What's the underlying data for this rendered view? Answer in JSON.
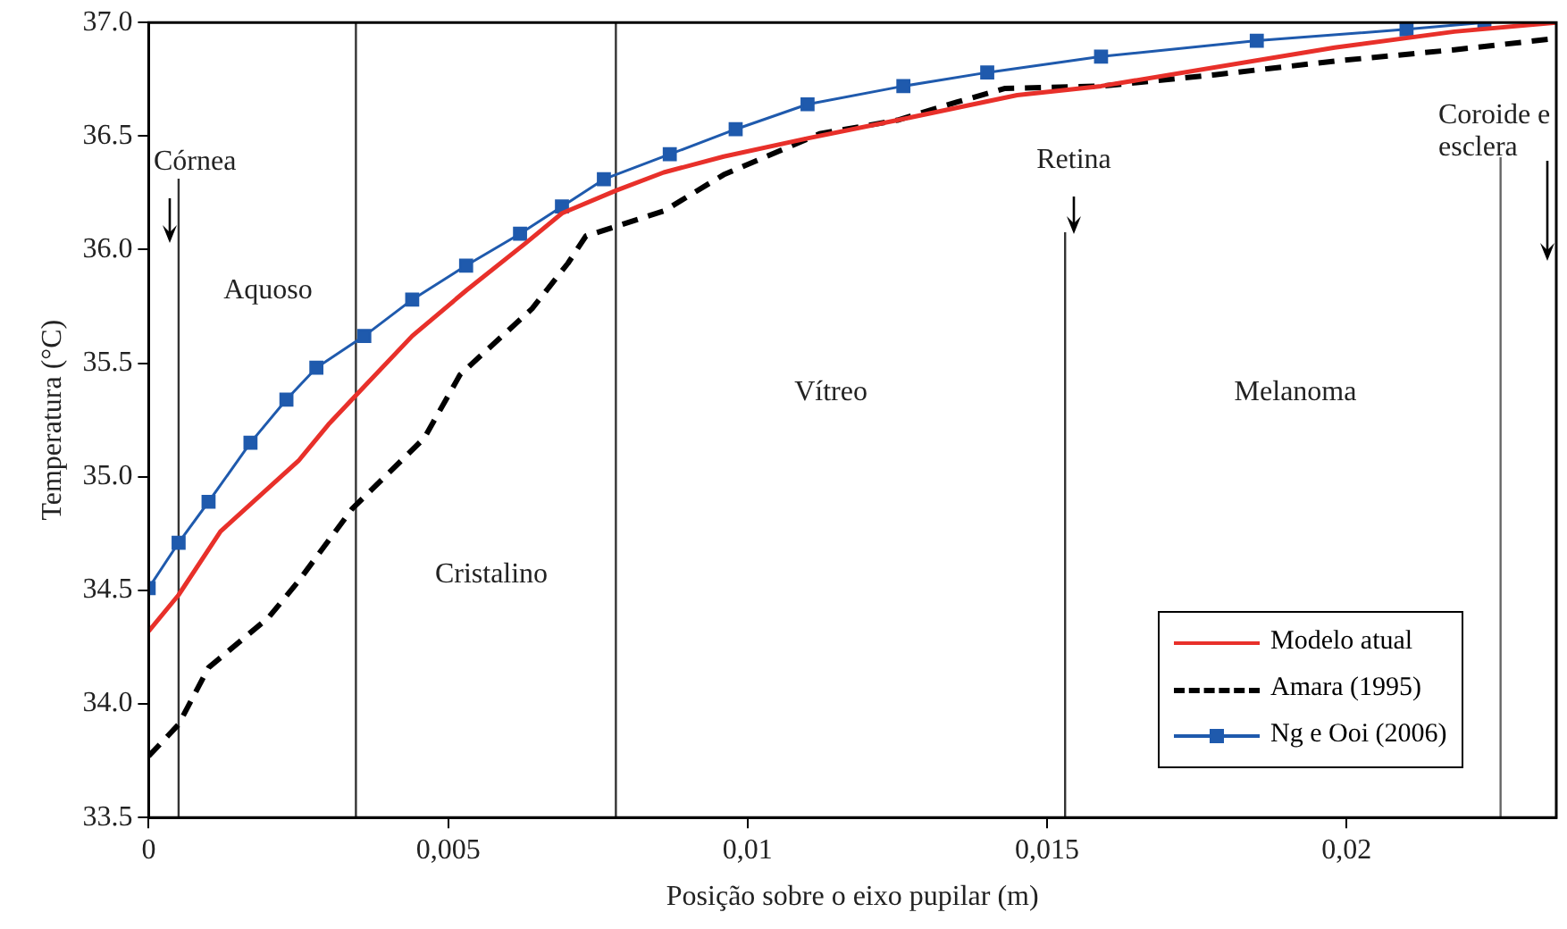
{
  "chart_data": {
    "type": "line",
    "xlabel": "Posição sobre o eixo pupilar (m)",
    "ylabel": "Temperatura (°C)",
    "xlim": [
      0,
      0.0235
    ],
    "ylim": [
      33.5,
      37.0
    ],
    "xticks": [
      {
        "value": 0,
        "label": "0"
      },
      {
        "value": 0.005,
        "label": "0,005"
      },
      {
        "value": 0.01,
        "label": "0,01"
      },
      {
        "value": 0.015,
        "label": "0,015"
      },
      {
        "value": 0.02,
        "label": "0,02"
      }
    ],
    "yticks": [
      {
        "value": 33.5,
        "label": "33.5"
      },
      {
        "value": 34,
        "label": "34.0"
      },
      {
        "value": 34.5,
        "label": "34.5"
      },
      {
        "value": 35,
        "label": "35.0"
      },
      {
        "value": 35.5,
        "label": "35.5"
      },
      {
        "value": 36,
        "label": "36.0"
      },
      {
        "value": 36.5,
        "label": "36.5"
      },
      {
        "value": 37,
        "label": "37.0"
      }
    ],
    "grid": false,
    "legend": "bottom right",
    "series": [
      {
        "name": "Modelo atual",
        "color": "#e8302a",
        "marker": "none",
        "line_style": "solid",
        "x": [
          0,
          0.0005,
          0.0012,
          0.0025,
          0.003,
          0.0035,
          0.0044,
          0.0053,
          0.0063,
          0.0069,
          0.0078,
          0.0086,
          0.0096,
          0.011,
          0.0125,
          0.0145,
          0.0159,
          0.0198,
          0.0218,
          0.0235
        ],
        "values": [
          34.32,
          34.48,
          34.76,
          35.07,
          35.23,
          35.37,
          35.62,
          35.82,
          36.03,
          36.16,
          36.26,
          36.34,
          36.41,
          36.49,
          36.57,
          36.68,
          36.72,
          36.89,
          36.96,
          37.0
        ]
      },
      {
        "name": "Amara (1995)",
        "color": "#000000",
        "marker": "none",
        "line_style": "dashed",
        "x": [
          0,
          0.0005,
          0.001,
          0.002,
          0.0025,
          0.0034,
          0.0046,
          0.0052,
          0.0064,
          0.007,
          0.0073,
          0.0086,
          0.0096,
          0.0112,
          0.0125,
          0.0135,
          0.0143,
          0.0159,
          0.0178,
          0.0198,
          0.0218,
          0.0235
        ],
        "values": [
          33.77,
          33.91,
          34.16,
          34.38,
          34.54,
          34.86,
          35.17,
          35.45,
          35.74,
          35.94,
          36.06,
          36.17,
          36.33,
          36.51,
          36.57,
          36.65,
          36.71,
          36.72,
          36.77,
          36.83,
          36.88,
          36.93
        ]
      },
      {
        "name": "Ng e Ooi (2006)",
        "color": "#1f5aad",
        "marker": "square",
        "line_style": "solid",
        "x": [
          0,
          0.0005,
          0.001,
          0.0017,
          0.0023,
          0.0028,
          0.0036,
          0.0044,
          0.0053,
          0.0062,
          0.0069,
          0.0076,
          0.0087,
          0.0098,
          0.011,
          0.0126,
          0.014,
          0.0159,
          0.0185,
          0.021,
          0.0223
        ],
        "values": [
          34.51,
          34.71,
          34.89,
          35.15,
          35.34,
          35.48,
          35.62,
          35.78,
          35.93,
          36.07,
          36.19,
          36.31,
          36.42,
          36.53,
          36.64,
          36.72,
          36.78,
          36.85,
          36.92,
          36.97,
          37.0
        ]
      }
    ],
    "ref_lines": [
      {
        "axis": "x",
        "value": 0.0005,
        "color": "#333333"
      },
      {
        "axis": "x",
        "value": 0.00346,
        "color": "#333333"
      },
      {
        "axis": "x",
        "value": 0.0078,
        "color": "#333333"
      },
      {
        "axis": "x",
        "value": 0.0153,
        "color": "#333333"
      },
      {
        "axis": "x",
        "value": 0.02257,
        "color": "#666666"
      }
    ],
    "annotations": [
      "Córnea",
      "Aquoso",
      "Cristalino",
      "Vítreo",
      "Retina",
      "Melanoma",
      "Coroide e\nesclera"
    ]
  }
}
